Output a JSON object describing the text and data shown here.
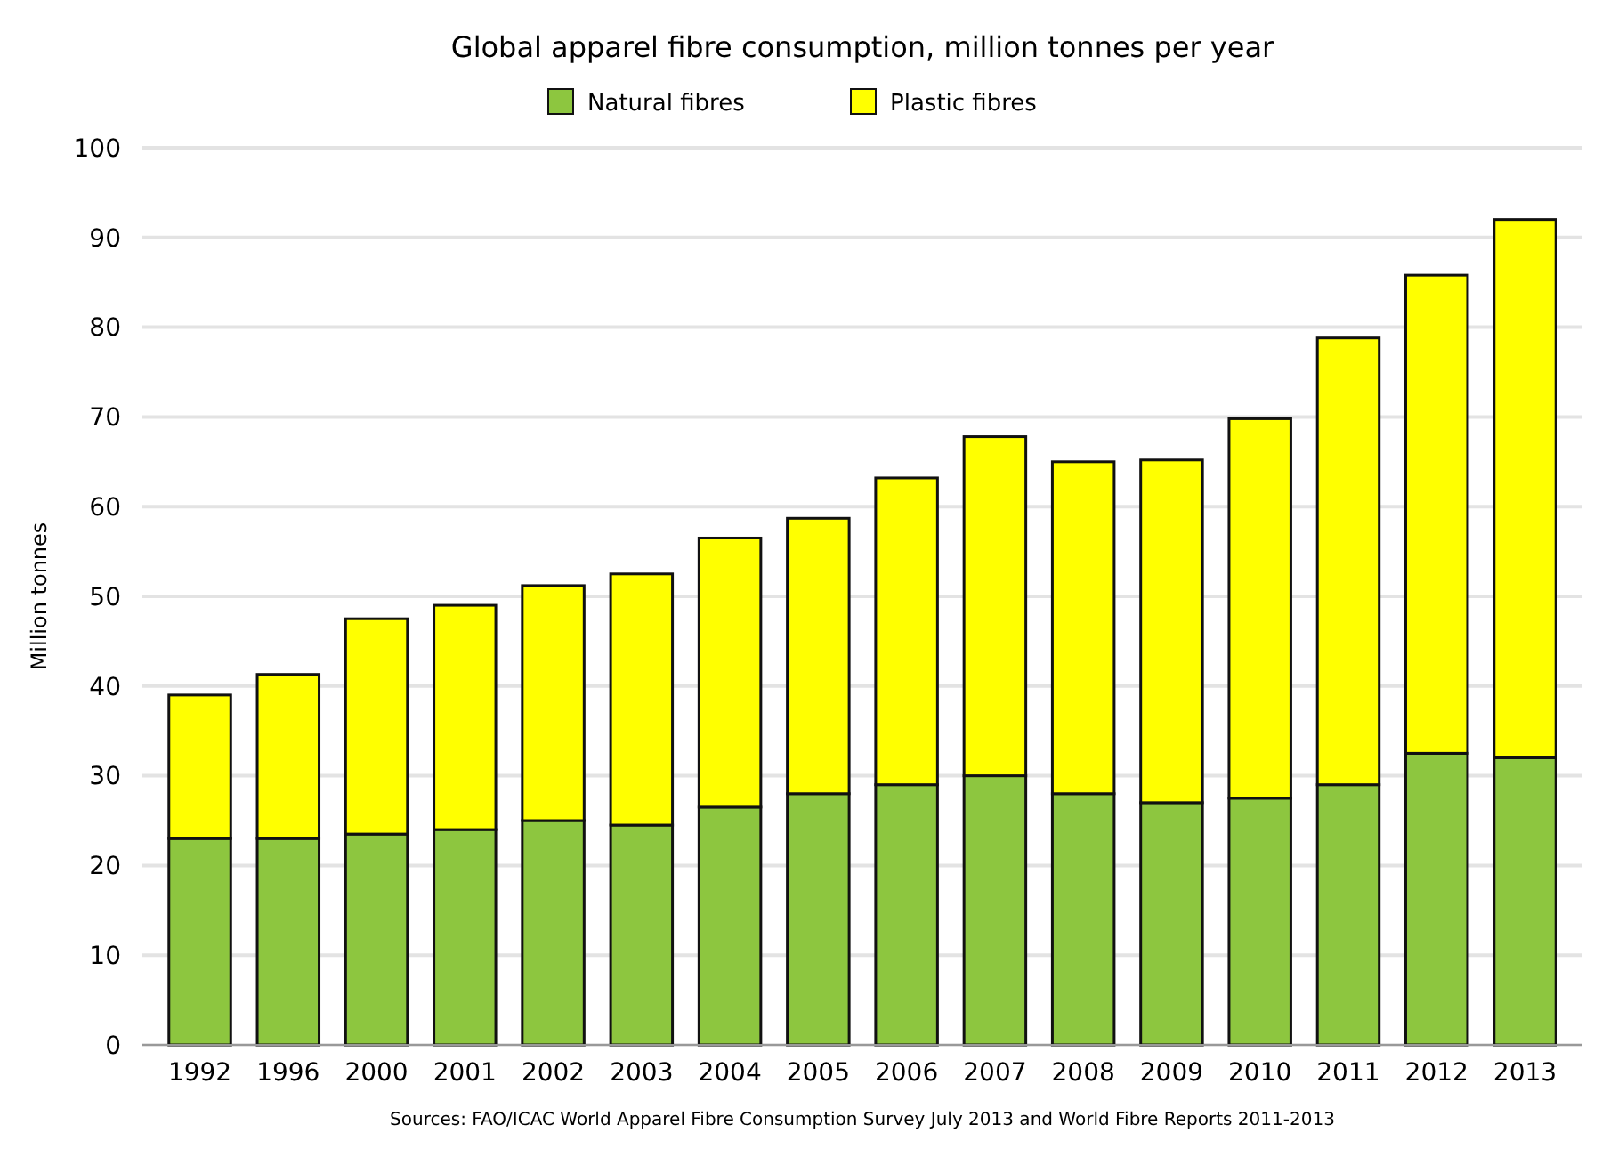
{
  "chart_data": {
    "type": "bar",
    "title": "Global apparel fibre consumption, million tonnes per year",
    "ylabel": "Million tonnes",
    "categories": [
      "1992",
      "1996",
      "2000",
      "2001",
      "2002",
      "2003",
      "2004",
      "2005",
      "2006",
      "2007",
      "2008",
      "2009",
      "2010",
      "2011",
      "2012",
      "2013"
    ],
    "series": [
      {
        "name": "Natural fibres",
        "color": "#8dc63f",
        "values": [
          23,
          23,
          23.5,
          24,
          25,
          24.5,
          26.5,
          28,
          29,
          30,
          28,
          27,
          27.5,
          29,
          32.5,
          32
        ]
      },
      {
        "name": "Plastic fibres",
        "color": "#ffff00",
        "values": [
          16,
          18.3,
          24,
          25,
          26.2,
          28,
          30,
          30.7,
          34.2,
          37.8,
          37,
          38.2,
          42.3,
          49.8,
          53.3,
          60
        ]
      }
    ],
    "stacked": true,
    "ylim": [
      0,
      100
    ],
    "yticks": [
      0,
      10,
      20,
      30,
      40,
      50,
      60,
      70,
      80,
      90,
      100
    ],
    "grid": "y",
    "legend": "top",
    "annotations": [
      "Sources: FAO/ICAC World Apparel Fibre Consumption Survey July 2013 and World Fibre Reports 2011-2013"
    ]
  }
}
